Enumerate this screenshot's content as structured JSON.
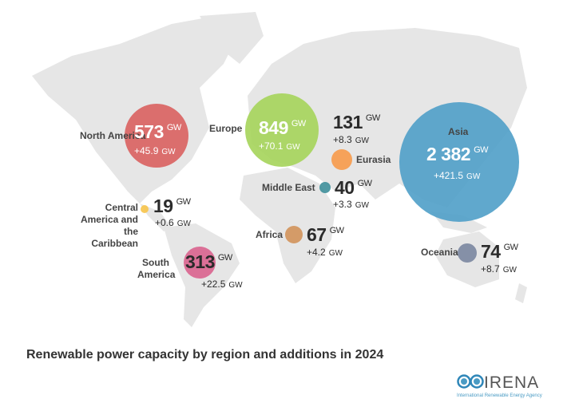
{
  "title": "Renewable power capacity by region and additions in 2024",
  "unit": "GW",
  "regions": [
    {
      "name": "North America",
      "capacity": "573",
      "addition": "+45.9",
      "color": "#d9605f"
    },
    {
      "name": "Europe",
      "capacity": "849",
      "addition": "+70.1",
      "color": "#a5d45a"
    },
    {
      "name": "Eurasia",
      "capacity": "131",
      "addition": "+8.3",
      "color": "#f79a4a"
    },
    {
      "name": "Middle East",
      "capacity": "40",
      "addition": "+3.3",
      "color": "#3f8f9a"
    },
    {
      "name": "Central America and the Caribbean",
      "capacity": "19",
      "addition": "+0.6",
      "color": "#f7c44a"
    },
    {
      "name": "Africa",
      "capacity": "67",
      "addition": "+4.2",
      "color": "#d2925a"
    },
    {
      "name": "South America",
      "capacity": "313",
      "addition": "+22.5",
      "color": "#d9638e"
    },
    {
      "name": "Asia",
      "capacity": "2 382",
      "addition": "+421.5",
      "color": "#4f9fc8"
    },
    {
      "name": "Oceania",
      "capacity": "74",
      "addition": "+8.7",
      "color": "#7a86a0"
    }
  ],
  "logo": {
    "name": "IRENA",
    "subtitle": "International Renewable Energy Agency"
  },
  "colors": {
    "land": "#e6e6e6"
  }
}
